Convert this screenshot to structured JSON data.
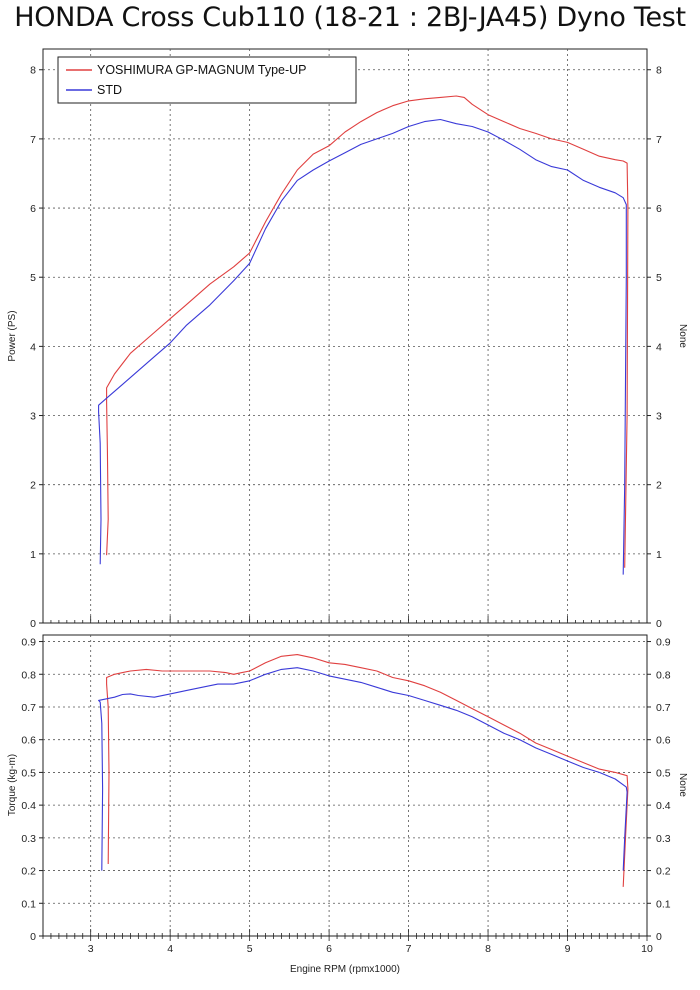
{
  "title": "HONDA Cross Cub110 (18-21 : 2BJ-JA45) Dyno Test",
  "colors": {
    "yoshimura": "#e04040",
    "std": "#3a3ad8",
    "grid": "#555555",
    "frame": "#222222"
  },
  "chart_data": [
    {
      "type": "line",
      "title": "",
      "xlabel": "",
      "ylabel": "Power (PS)",
      "ylabel_right": "None",
      "xlim": [
        2.4,
        10
      ],
      "ylim": [
        0,
        8.3
      ],
      "yticks": [
        0,
        1,
        2,
        3,
        4,
        5,
        6,
        7,
        8
      ],
      "yticklabels": [
        "0",
        "1",
        "2",
        "3",
        "4",
        "5",
        "6",
        "7",
        "8"
      ],
      "grid": true,
      "legend_placement": "top-left",
      "series": [
        {
          "name": "YOSHIMURA GP-MAGNUM Type-UP",
          "color": "#e04040",
          "x": [
            3.2,
            3.22,
            3.21,
            3.2,
            3.2,
            3.3,
            3.5,
            3.8,
            4.0,
            4.2,
            4.5,
            4.8,
            5.0,
            5.2,
            5.4,
            5.6,
            5.8,
            6.0,
            6.2,
            6.4,
            6.6,
            6.8,
            7.0,
            7.2,
            7.4,
            7.6,
            7.7,
            7.8,
            8.0,
            8.2,
            8.4,
            8.6,
            8.8,
            9.0,
            9.2,
            9.4,
            9.6,
            9.7,
            9.75,
            9.76,
            9.75,
            9.72
          ],
          "y": [
            0.98,
            1.5,
            2.5,
            3.2,
            3.4,
            3.6,
            3.9,
            4.2,
            4.4,
            4.6,
            4.9,
            5.15,
            5.35,
            5.8,
            6.2,
            6.55,
            6.78,
            6.9,
            7.1,
            7.25,
            7.38,
            7.48,
            7.55,
            7.58,
            7.6,
            7.62,
            7.6,
            7.5,
            7.35,
            7.25,
            7.15,
            7.08,
            7.0,
            6.95,
            6.85,
            6.75,
            6.7,
            6.68,
            6.65,
            6.0,
            3.0,
            0.8
          ]
        },
        {
          "name": "STD",
          "color": "#3a3ad8",
          "x": [
            3.12,
            3.13,
            3.12,
            3.1,
            3.1,
            3.2,
            3.4,
            3.6,
            3.8,
            4.0,
            4.2,
            4.5,
            4.8,
            5.0,
            5.2,
            5.4,
            5.6,
            5.8,
            6.0,
            6.2,
            6.4,
            6.6,
            6.8,
            7.0,
            7.2,
            7.4,
            7.6,
            7.8,
            8.0,
            8.2,
            8.4,
            8.6,
            8.8,
            9.0,
            9.2,
            9.4,
            9.6,
            9.7,
            9.74,
            9.74,
            9.72,
            9.7
          ],
          "y": [
            0.85,
            1.5,
            2.6,
            3.05,
            3.15,
            3.25,
            3.45,
            3.65,
            3.85,
            4.05,
            4.3,
            4.6,
            4.95,
            5.2,
            5.7,
            6.1,
            6.4,
            6.55,
            6.68,
            6.8,
            6.92,
            7.0,
            7.08,
            7.18,
            7.25,
            7.28,
            7.22,
            7.18,
            7.1,
            6.98,
            6.85,
            6.7,
            6.6,
            6.55,
            6.4,
            6.3,
            6.22,
            6.15,
            6.05,
            5.0,
            2.0,
            0.7
          ]
        }
      ]
    },
    {
      "type": "line",
      "title": "",
      "xlabel": "Engine RPM (rpmx1000)",
      "ylabel": "Torque (kg-m)",
      "ylabel_right": "None",
      "xlim": [
        2.4,
        10
      ],
      "xticks": [
        3,
        4,
        5,
        6,
        7,
        8,
        9,
        10
      ],
      "xticklabels": [
        "3",
        "4",
        "5",
        "6",
        "7",
        "8",
        "9",
        "10"
      ],
      "ylim": [
        0,
        0.92
      ],
      "yticks": [
        0,
        0.1,
        0.2,
        0.3,
        0.4,
        0.5,
        0.6,
        0.7,
        0.8,
        0.9
      ],
      "yticklabels": [
        "0",
        "0.1",
        "0.2",
        "0.3",
        "0.4",
        "0.5",
        "0.6",
        "0.7",
        "0.8",
        "0.9"
      ],
      "grid": true,
      "series": [
        {
          "name": "YOSHIMURA GP-MAGNUM Type-UP",
          "color": "#e04040",
          "x": [
            3.22,
            3.23,
            3.22,
            3.2,
            3.2,
            3.3,
            3.5,
            3.7,
            3.9,
            4.1,
            4.3,
            4.5,
            4.7,
            4.8,
            4.9,
            5.0,
            5.2,
            5.4,
            5.6,
            5.8,
            6.0,
            6.2,
            6.4,
            6.6,
            6.8,
            7.0,
            7.2,
            7.4,
            7.6,
            7.8,
            8.0,
            8.2,
            8.4,
            8.6,
            8.8,
            9.0,
            9.2,
            9.4,
            9.6,
            9.75,
            9.76,
            9.73,
            9.7
          ],
          "y": [
            0.22,
            0.5,
            0.7,
            0.77,
            0.79,
            0.8,
            0.81,
            0.815,
            0.81,
            0.81,
            0.81,
            0.81,
            0.805,
            0.8,
            0.805,
            0.81,
            0.835,
            0.855,
            0.86,
            0.85,
            0.835,
            0.83,
            0.82,
            0.81,
            0.79,
            0.78,
            0.765,
            0.745,
            0.72,
            0.695,
            0.67,
            0.645,
            0.62,
            0.59,
            0.57,
            0.55,
            0.53,
            0.51,
            0.5,
            0.49,
            0.45,
            0.3,
            0.15
          ]
        },
        {
          "name": "STD",
          "color": "#3a3ad8",
          "x": [
            3.14,
            3.15,
            3.14,
            3.12,
            3.1,
            3.2,
            3.3,
            3.4,
            3.5,
            3.6,
            3.8,
            4.0,
            4.2,
            4.4,
            4.6,
            4.8,
            5.0,
            5.2,
            5.4,
            5.6,
            5.8,
            6.0,
            6.2,
            6.4,
            6.6,
            6.8,
            7.0,
            7.2,
            7.4,
            7.6,
            7.8,
            8.0,
            8.2,
            8.4,
            8.6,
            8.8,
            9.0,
            9.2,
            9.4,
            9.6,
            9.74,
            9.75,
            9.72,
            9.7
          ],
          "y": [
            0.2,
            0.45,
            0.65,
            0.715,
            0.72,
            0.725,
            0.73,
            0.738,
            0.74,
            0.735,
            0.73,
            0.74,
            0.75,
            0.76,
            0.77,
            0.77,
            0.78,
            0.8,
            0.815,
            0.82,
            0.81,
            0.795,
            0.785,
            0.775,
            0.76,
            0.745,
            0.735,
            0.72,
            0.705,
            0.69,
            0.67,
            0.645,
            0.62,
            0.6,
            0.575,
            0.555,
            0.535,
            0.515,
            0.5,
            0.48,
            0.455,
            0.44,
            0.3,
            0.2
          ]
        }
      ]
    }
  ]
}
